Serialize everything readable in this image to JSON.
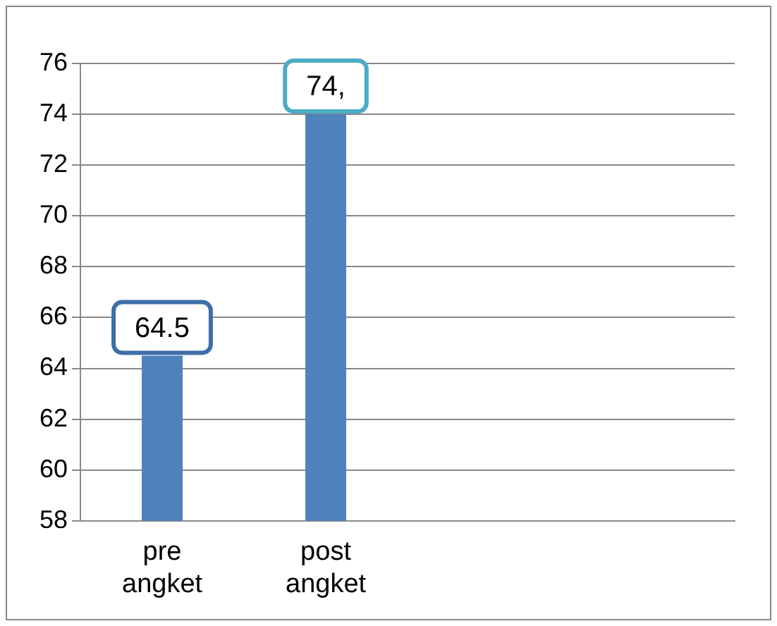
{
  "chart_data": {
    "type": "bar",
    "categories": [
      "pre angket",
      "post angket",
      null,
      null
    ],
    "series": [
      {
        "color": "#4f81bd",
        "values": [
          64.5,
          74,
          null,
          null
        ],
        "value_labels": [
          "64.5",
          "74,",
          null,
          null
        ]
      }
    ],
    "ylim": [
      58,
      76
    ],
    "yticks": [
      58,
      60,
      62,
      64,
      66,
      68,
      70,
      72,
      74,
      76
    ],
    "grid": "y",
    "legend": false
  }
}
